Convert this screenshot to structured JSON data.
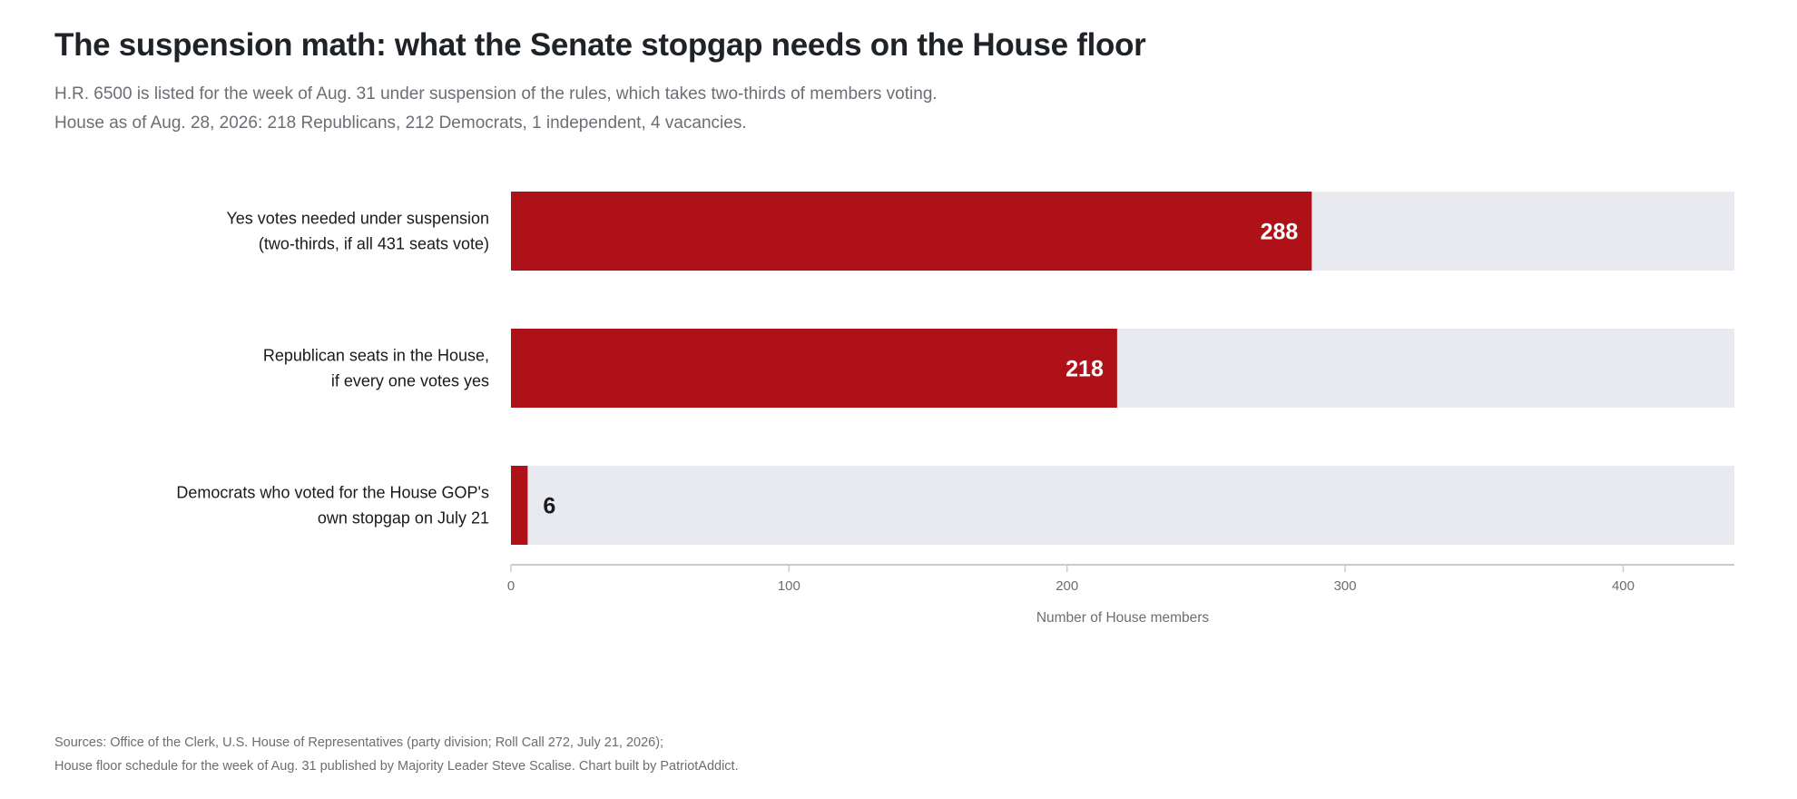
{
  "chart_data": {
    "type": "bar",
    "orientation": "horizontal",
    "title": "The suspension math: what the Senate stopgap needs on the House floor",
    "subtitle": [
      "H.R. 6500 is listed for the week of Aug. 31 under suspension of the rules, which takes two-thirds of members voting.",
      "House as of Aug. 28, 2026: 218 Republicans, 212 Democrats, 1 independent, 4 vacancies."
    ],
    "categories": [
      [
        "Yes votes needed under suspension",
        "(two-thirds, if all 431 seats vote)"
      ],
      [
        "Republican seats in the House,",
        "if every one votes yes"
      ],
      [
        "Democrats who voted for the House GOP's",
        "own stopgap on July 21"
      ]
    ],
    "values": [
      288,
      218,
      6
    ],
    "value_labels": [
      "288",
      "218",
      "6"
    ],
    "background_bar_max": 440,
    "xlim": [
      0,
      440
    ],
    "x_ticks": [
      0,
      100,
      200,
      300,
      400
    ],
    "x_tick_labels": [
      "0",
      "100",
      "200",
      "300",
      "400"
    ],
    "xlabel": "Number of House members",
    "grid": false,
    "legend": "none",
    "colors": {
      "bar": "#ae1218",
      "track": "#e8eaef",
      "axis": "#c9cbd0"
    }
  },
  "sources": [
    "Sources: Office of the Clerk, U.S. House of Representatives (party division; Roll Call 272, July 21, 2026);",
    "House floor schedule for the week of Aug. 31 published by Majority Leader Steve Scalise.  Chart built by PatriotAddict."
  ]
}
